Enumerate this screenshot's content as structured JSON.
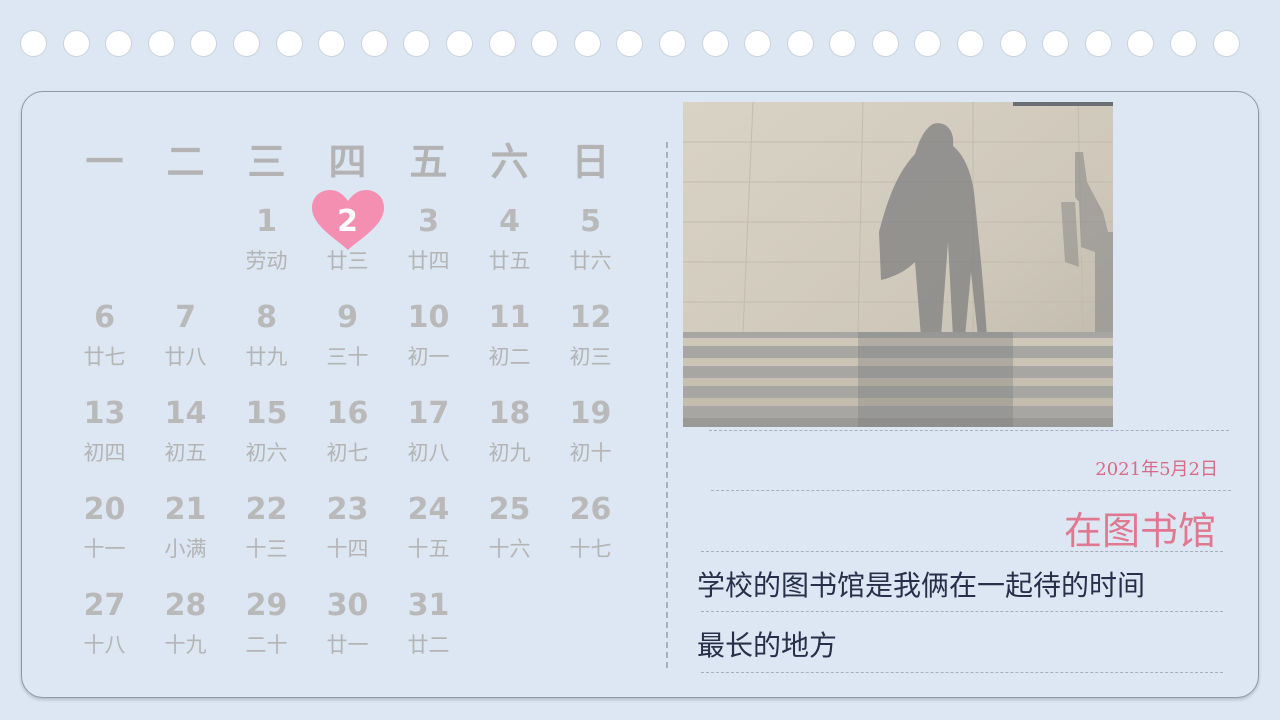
{
  "calendar": {
    "weekdays": [
      "一",
      "二",
      "三",
      "四",
      "五",
      "六",
      "日"
    ],
    "weeks": [
      [
        null,
        null,
        {
          "day": "1",
          "lunar": "劳动"
        },
        {
          "day": "2",
          "lunar": "廿三",
          "highlight": true
        },
        {
          "day": "3",
          "lunar": "廿四"
        },
        {
          "day": "4",
          "lunar": "廿五"
        },
        {
          "day": "5",
          "lunar": "廿六"
        }
      ],
      [
        {
          "day": "6",
          "lunar": "廿七"
        },
        {
          "day": "7",
          "lunar": "廿八"
        },
        {
          "day": "8",
          "lunar": "廿九"
        },
        {
          "day": "9",
          "lunar": "三十"
        },
        {
          "day": "10",
          "lunar": "初一"
        },
        {
          "day": "11",
          "lunar": "初二"
        },
        {
          "day": "12",
          "lunar": "初三"
        }
      ],
      [
        {
          "day": "13",
          "lunar": "初四"
        },
        {
          "day": "14",
          "lunar": "初五"
        },
        {
          "day": "15",
          "lunar": "初六"
        },
        {
          "day": "16",
          "lunar": "初七"
        },
        {
          "day": "17",
          "lunar": "初八"
        },
        {
          "day": "18",
          "lunar": "初九"
        },
        {
          "day": "19",
          "lunar": "初十"
        }
      ],
      [
        {
          "day": "20",
          "lunar": "十一"
        },
        {
          "day": "21",
          "lunar": "小满"
        },
        {
          "day": "22",
          "lunar": "十三"
        },
        {
          "day": "23",
          "lunar": "十四"
        },
        {
          "day": "24",
          "lunar": "十五"
        },
        {
          "day": "25",
          "lunar": "十六"
        },
        {
          "day": "26",
          "lunar": "十七"
        }
      ],
      [
        {
          "day": "27",
          "lunar": "十八"
        },
        {
          "day": "28",
          "lunar": "十九"
        },
        {
          "day": "29",
          "lunar": "二十"
        },
        {
          "day": "30",
          "lunar": "廿一"
        },
        {
          "day": "31",
          "lunar": "廿二"
        },
        null,
        null
      ]
    ]
  },
  "entry": {
    "date": "2021年5月2日",
    "place": "在图书馆",
    "description_line1": "学校的图书馆是我俩在一起待的时间",
    "description_line2": "最长的地方"
  },
  "colors": {
    "background": "#dce7f3",
    "accent_pink": "#e07890",
    "heart_pink": "#f48fb1",
    "muted_gray": "#b9b9b9",
    "text_dark": "#27304a"
  },
  "icons": {
    "highlight_marker": "heart-icon",
    "binding": "ring-hole"
  }
}
